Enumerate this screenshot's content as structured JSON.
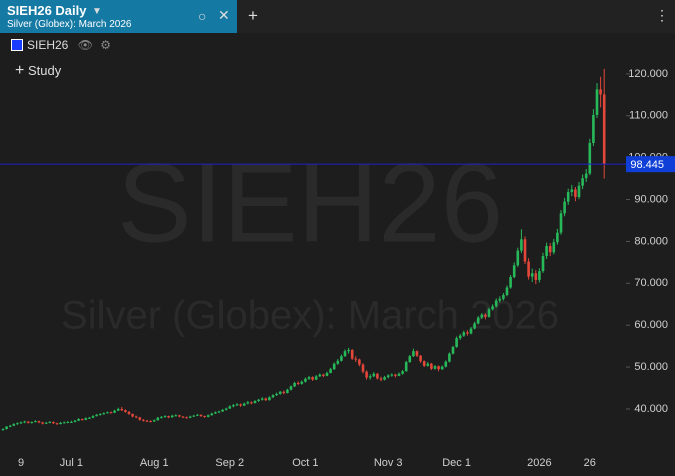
{
  "tab": {
    "title": "SIEH26 Daily",
    "subtitle": "Silver (Globex): March 2026"
  },
  "study_button": "Study",
  "chart_data": {
    "type": "candlestick",
    "watermark": {
      "symbol": "SIEH26",
      "description": "Silver (Globex): March 2026"
    },
    "categories": [
      null,
      null,
      null,
      null,
      null,
      "9",
      null,
      null,
      null,
      null,
      null,
      null,
      null,
      null,
      null,
      null,
      null,
      null,
      null,
      "Jul 1",
      null,
      null,
      null,
      null,
      null,
      null,
      null,
      null,
      null,
      null,
      null,
      null,
      null,
      null,
      null,
      null,
      null,
      null,
      null,
      null,
      null,
      null,
      "Aug 1",
      null,
      null,
      null,
      null,
      null,
      null,
      null,
      null,
      null,
      null,
      null,
      null,
      null,
      null,
      null,
      null,
      null,
      null,
      null,
      null,
      "Sep 2",
      null,
      null,
      null,
      null,
      null,
      null,
      null,
      null,
      null,
      null,
      null,
      null,
      null,
      null,
      null,
      null,
      null,
      null,
      null,
      null,
      "Oct 1",
      null,
      null,
      null,
      null,
      null,
      null,
      null,
      null,
      null,
      null,
      null,
      null,
      null,
      null,
      null,
      null,
      null,
      null,
      null,
      null,
      null,
      null,
      "Nov 3",
      null,
      null,
      null,
      null,
      null,
      null,
      null,
      null,
      null,
      null,
      null,
      null,
      null,
      null,
      null,
      null,
      null,
      null,
      "Dec 1",
      null,
      null,
      null,
      null,
      null,
      null,
      null,
      null,
      null,
      null,
      null,
      null,
      null,
      null,
      null,
      null,
      null,
      null,
      null,
      null,
      null,
      null,
      "2026",
      null,
      null,
      null,
      null,
      null,
      null,
      null,
      null,
      null,
      null,
      null,
      null,
      null,
      "26",
      null,
      null,
      null,
      null
    ],
    "series": [
      {
        "name": "SIEH26",
        "color": "#1a3cff",
        "up_color": "#27b85a",
        "down_color": "#e2473a",
        "values": [
          [
            35.0,
            35.4,
            34.8,
            35.2
          ],
          [
            35.2,
            35.9,
            35.1,
            35.8
          ],
          [
            35.8,
            36.2,
            35.6,
            36.0
          ],
          [
            36.0,
            36.6,
            35.9,
            36.4
          ],
          [
            36.4,
            36.8,
            36.2,
            36.6
          ],
          [
            36.6,
            37.0,
            36.4,
            36.8
          ],
          [
            36.8,
            37.2,
            36.6,
            37.0
          ],
          [
            37.0,
            37.1,
            36.5,
            36.7
          ],
          [
            36.7,
            37.0,
            36.5,
            36.9
          ],
          [
            36.9,
            37.3,
            36.8,
            37.1
          ],
          [
            37.1,
            37.2,
            36.6,
            36.8
          ],
          [
            36.8,
            36.9,
            36.3,
            36.5
          ],
          [
            36.5,
            36.9,
            36.4,
            36.7
          ],
          [
            36.7,
            37.1,
            36.6,
            36.9
          ],
          [
            36.9,
            37.0,
            36.4,
            36.6
          ],
          [
            36.6,
            36.7,
            36.2,
            36.4
          ],
          [
            36.4,
            36.9,
            36.3,
            36.7
          ],
          [
            36.7,
            37.0,
            36.5,
            36.8
          ],
          [
            36.8,
            37.1,
            36.6,
            36.9
          ],
          [
            36.8,
            37.2,
            36.7,
            36.9
          ],
          [
            36.9,
            37.4,
            36.8,
            37.2
          ],
          [
            37.2,
            37.8,
            37.1,
            37.6
          ],
          [
            37.6,
            37.7,
            37.2,
            37.4
          ],
          [
            37.4,
            38.0,
            37.3,
            37.8
          ],
          [
            37.8,
            38.1,
            37.6,
            37.9
          ],
          [
            37.9,
            38.5,
            37.8,
            38.3
          ],
          [
            38.3,
            38.8,
            38.2,
            38.6
          ],
          [
            38.6,
            39.0,
            38.4,
            38.8
          ],
          [
            38.8,
            39.2,
            38.6,
            39.0
          ],
          [
            39.0,
            39.4,
            38.9,
            39.2
          ],
          [
            39.2,
            39.4,
            38.9,
            39.1
          ],
          [
            39.1,
            39.8,
            39.0,
            39.6
          ],
          [
            39.6,
            40.3,
            39.5,
            40.0
          ],
          [
            40.0,
            40.5,
            39.5,
            39.7
          ],
          [
            39.7,
            39.9,
            39.1,
            39.3
          ],
          [
            39.3,
            39.5,
            38.6,
            38.8
          ],
          [
            38.8,
            38.9,
            38.0,
            38.2
          ],
          [
            38.2,
            38.4,
            37.8,
            38.0
          ],
          [
            38.0,
            38.1,
            37.2,
            37.4
          ],
          [
            37.4,
            37.6,
            37.0,
            37.2
          ],
          [
            37.2,
            37.4,
            36.9,
            37.1
          ],
          [
            37.1,
            37.3,
            36.8,
            37.0
          ],
          [
            37.0,
            37.5,
            36.9,
            37.3
          ],
          [
            37.3,
            38.1,
            37.2,
            37.9
          ],
          [
            37.9,
            38.3,
            37.7,
            38.1
          ],
          [
            38.1,
            38.5,
            37.9,
            38.3
          ],
          [
            38.3,
            38.4,
            37.8,
            38.0
          ],
          [
            38.0,
            38.6,
            37.9,
            38.4
          ],
          [
            38.4,
            38.7,
            38.2,
            38.5
          ],
          [
            38.5,
            38.6,
            38.0,
            38.2
          ],
          [
            38.2,
            38.3,
            37.8,
            38.0
          ],
          [
            38.0,
            38.2,
            37.7,
            37.9
          ],
          [
            37.9,
            38.4,
            37.8,
            38.2
          ],
          [
            38.2,
            38.6,
            38.1,
            38.4
          ],
          [
            38.4,
            38.8,
            38.3,
            38.6
          ],
          [
            38.6,
            38.7,
            38.1,
            38.3
          ],
          [
            38.3,
            38.4,
            37.9,
            38.1
          ],
          [
            38.1,
            38.7,
            38.0,
            38.5
          ],
          [
            38.5,
            39.1,
            38.4,
            38.9
          ],
          [
            38.9,
            39.4,
            38.8,
            39.2
          ],
          [
            39.2,
            39.6,
            39.0,
            39.4
          ],
          [
            39.4,
            40.0,
            39.3,
            39.8
          ],
          [
            39.8,
            40.3,
            39.6,
            40.1
          ],
          [
            40.1,
            40.9,
            40.0,
            40.6
          ],
          [
            40.6,
            41.2,
            40.4,
            40.9
          ],
          [
            40.9,
            41.4,
            40.7,
            41.1
          ],
          [
            41.1,
            41.3,
            40.5,
            40.8
          ],
          [
            40.8,
            41.5,
            40.7,
            41.3
          ],
          [
            41.3,
            41.9,
            41.1,
            41.6
          ],
          [
            41.6,
            41.8,
            41.1,
            41.4
          ],
          [
            41.4,
            42.1,
            41.3,
            41.9
          ],
          [
            41.9,
            42.4,
            41.7,
            42.2
          ],
          [
            42.2,
            42.8,
            42.0,
            42.5
          ],
          [
            42.5,
            42.7,
            41.9,
            42.1
          ],
          [
            42.1,
            43.0,
            42.0,
            42.8
          ],
          [
            42.8,
            43.5,
            42.6,
            43.3
          ],
          [
            43.3,
            43.9,
            43.1,
            43.6
          ],
          [
            43.6,
            44.3,
            43.4,
            44.1
          ],
          [
            44.1,
            44.4,
            43.5,
            43.8
          ],
          [
            43.8,
            44.8,
            43.7,
            44.6
          ],
          [
            44.6,
            45.6,
            44.4,
            45.4
          ],
          [
            45.4,
            46.5,
            45.2,
            46.2
          ],
          [
            46.2,
            46.6,
            45.7,
            46.0
          ],
          [
            46.0,
            46.8,
            45.8,
            46.5
          ],
          [
            46.5,
            47.5,
            46.3,
            47.2
          ],
          [
            47.2,
            47.9,
            46.9,
            47.6
          ],
          [
            47.6,
            47.8,
            46.7,
            47.0
          ],
          [
            47.0,
            48.1,
            46.9,
            47.8
          ],
          [
            47.8,
            48.5,
            47.6,
            48.2
          ],
          [
            48.2,
            48.4,
            47.6,
            47.9
          ],
          [
            47.9,
            48.9,
            47.8,
            48.6
          ],
          [
            48.6,
            49.8,
            48.5,
            49.5
          ],
          [
            49.5,
            51.1,
            49.3,
            50.8
          ],
          [
            50.8,
            51.9,
            50.5,
            51.5
          ],
          [
            51.5,
            53.0,
            51.3,
            52.6
          ],
          [
            52.6,
            54.2,
            52.4,
            53.8
          ],
          [
            53.8,
            54.6,
            53.2,
            54.1
          ],
          [
            54.1,
            54.3,
            51.7,
            52.0
          ],
          [
            52.0,
            52.6,
            51.2,
            51.8
          ],
          [
            51.8,
            52.0,
            50.2,
            50.6
          ],
          [
            50.6,
            50.9,
            48.5,
            48.9
          ],
          [
            48.9,
            49.2,
            47.0,
            47.5
          ],
          [
            47.5,
            48.3,
            47.0,
            47.8
          ],
          [
            47.8,
            48.8,
            47.6,
            48.4
          ],
          [
            48.4,
            48.6,
            47.0,
            47.3
          ],
          [
            47.3,
            47.7,
            46.6,
            47.0
          ],
          [
            47.0,
            47.9,
            46.8,
            47.6
          ],
          [
            47.6,
            48.3,
            47.3,
            48.0
          ],
          [
            48.0,
            48.5,
            47.7,
            48.2
          ],
          [
            48.2,
            48.4,
            47.5,
            47.9
          ],
          [
            47.9,
            48.7,
            47.8,
            48.4
          ],
          [
            48.4,
            49.3,
            48.2,
            49.0
          ],
          [
            49.0,
            51.5,
            48.9,
            51.2
          ],
          [
            51.2,
            52.9,
            51.0,
            52.6
          ],
          [
            52.6,
            54.4,
            52.4,
            53.8
          ],
          [
            53.8,
            54.0,
            52.4,
            52.7
          ],
          [
            52.7,
            52.9,
            51.0,
            51.4
          ],
          [
            51.4,
            51.6,
            50.0,
            50.3
          ],
          [
            50.3,
            51.2,
            50.1,
            50.8
          ],
          [
            50.8,
            51.0,
            49.3,
            49.6
          ],
          [
            49.6,
            50.5,
            49.4,
            50.2
          ],
          [
            50.2,
            50.4,
            49.0,
            49.5
          ],
          [
            49.5,
            50.4,
            49.3,
            50.1
          ],
          [
            50.1,
            51.6,
            49.9,
            51.3
          ],
          [
            51.3,
            53.5,
            51.1,
            53.2
          ],
          [
            53.2,
            55.1,
            53.0,
            54.8
          ],
          [
            54.8,
            57.3,
            54.6,
            56.9
          ],
          [
            56.9,
            57.9,
            56.5,
            57.5
          ],
          [
            57.5,
            58.7,
            57.2,
            58.3
          ],
          [
            58.3,
            58.8,
            57.5,
            58.0
          ],
          [
            58.0,
            59.6,
            57.8,
            59.2
          ],
          [
            59.2,
            60.8,
            59.0,
            60.4
          ],
          [
            60.4,
            62.2,
            60.2,
            61.8
          ],
          [
            61.8,
            62.9,
            61.5,
            62.5
          ],
          [
            62.5,
            62.8,
            61.4,
            62.0
          ],
          [
            62.0,
            64.2,
            61.8,
            63.8
          ],
          [
            63.8,
            65.0,
            63.5,
            64.5
          ],
          [
            64.5,
            66.4,
            64.2,
            65.9
          ],
          [
            65.9,
            66.9,
            65.4,
            66.3
          ],
          [
            66.3,
            67.7,
            65.9,
            67.2
          ],
          [
            67.2,
            69.5,
            66.9,
            69.0
          ],
          [
            69.0,
            72.0,
            68.7,
            71.5
          ],
          [
            71.5,
            75.0,
            71.2,
            74.3
          ],
          [
            74.3,
            78.5,
            73.9,
            77.8
          ],
          [
            77.8,
            82.9,
            77.2,
            80.5
          ],
          [
            80.5,
            81.2,
            74.6,
            75.2
          ],
          [
            75.2,
            76.0,
            70.9,
            71.6
          ],
          [
            71.6,
            73.5,
            70.3,
            72.4
          ],
          [
            72.4,
            73.2,
            69.8,
            70.8
          ],
          [
            70.8,
            73.6,
            70.2,
            72.9
          ],
          [
            72.9,
            77.3,
            72.5,
            76.5
          ],
          [
            76.5,
            79.7,
            75.8,
            78.9
          ],
          [
            78.9,
            79.6,
            76.5,
            77.4
          ],
          [
            77.4,
            80.6,
            76.9,
            79.8
          ],
          [
            79.8,
            83.0,
            79.2,
            82.1
          ],
          [
            82.1,
            87.5,
            81.6,
            86.7
          ],
          [
            86.7,
            90.4,
            86.0,
            89.5
          ],
          [
            89.5,
            92.6,
            88.7,
            91.8
          ],
          [
            91.8,
            93.5,
            90.8,
            92.4
          ],
          [
            92.4,
            93.0,
            89.6,
            90.6
          ],
          [
            90.6,
            94.2,
            90.1,
            93.3
          ],
          [
            93.3,
            96.0,
            92.5,
            95.1
          ],
          [
            95.1,
            97.3,
            94.2,
            96.2
          ],
          [
            96.2,
            104.5,
            95.8,
            103.5
          ],
          [
            103.5,
            111.6,
            102.8,
            110.2
          ],
          [
            110.2,
            117.8,
            109.5,
            116.3
          ],
          [
            116.3,
            119.3,
            112.0,
            115.1
          ],
          [
            115.1,
            121.2,
            95.0,
            98.445
          ]
        ]
      }
    ],
    "price_line_color": "#1a22c8",
    "ylim": [
      30.2,
      130
    ],
    "yticks": [
      {
        "value": 40,
        "label": "40.000"
      },
      {
        "value": 50,
        "label": "50.000"
      },
      {
        "value": 60,
        "label": "60.000"
      },
      {
        "value": 70,
        "label": "70.000"
      },
      {
        "value": 80,
        "label": "80.000"
      },
      {
        "value": 90,
        "label": "90.000"
      },
      {
        "value": 100,
        "label": "100.000"
      },
      {
        "value": 110,
        "label": "110.000"
      },
      {
        "value": 120,
        "label": "120.000"
      }
    ],
    "grid": false
  }
}
